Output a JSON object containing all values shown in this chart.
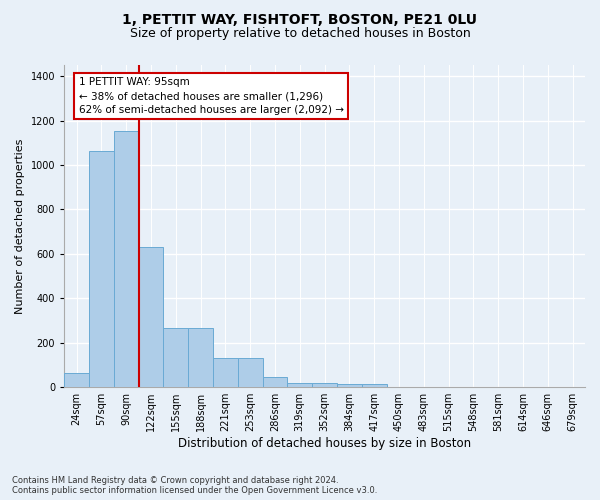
{
  "title1": "1, PETTIT WAY, FISHTOFT, BOSTON, PE21 0LU",
  "title2": "Size of property relative to detached houses in Boston",
  "xlabel": "Distribution of detached houses by size in Boston",
  "ylabel": "Number of detached properties",
  "footnote": "Contains HM Land Registry data © Crown copyright and database right 2024.\nContains public sector information licensed under the Open Government Licence v3.0.",
  "bar_labels": [
    "24sqm",
    "57sqm",
    "90sqm",
    "122sqm",
    "155sqm",
    "188sqm",
    "221sqm",
    "253sqm",
    "286sqm",
    "319sqm",
    "352sqm",
    "384sqm",
    "417sqm",
    "450sqm",
    "483sqm",
    "515sqm",
    "548sqm",
    "581sqm",
    "614sqm",
    "646sqm",
    "679sqm"
  ],
  "bar_values": [
    65,
    1065,
    1155,
    630,
    265,
    265,
    130,
    130,
    48,
    20,
    20,
    15,
    15,
    0,
    0,
    0,
    0,
    0,
    0,
    0,
    0
  ],
  "bar_color": "#aecde8",
  "bar_edge_color": "#6aaad4",
  "vline_color": "#cc0000",
  "vline_x_index": 2,
  "annotation_text_line1": "1 PETTIT WAY: 95sqm",
  "annotation_text_line2": "← 38% of detached houses are smaller (1,296)",
  "annotation_text_line3": "62% of semi-detached houses are larger (2,092) →",
  "ylim": [
    0,
    1450
  ],
  "yticks": [
    0,
    200,
    400,
    600,
    800,
    1000,
    1200,
    1400
  ],
  "background_color": "#e8f0f8",
  "grid_color": "#ffffff",
  "title1_fontsize": 10,
  "title2_fontsize": 9,
  "xlabel_fontsize": 8.5,
  "ylabel_fontsize": 8,
  "tick_fontsize": 7,
  "annot_fontsize": 7.5
}
